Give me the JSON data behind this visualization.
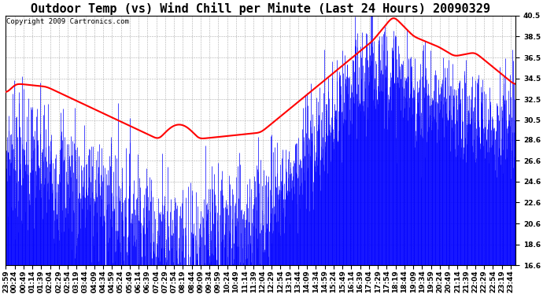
{
  "title": "Outdoor Temp (vs) Wind Chill per Minute (Last 24 Hours) 20090329",
  "copyright": "Copyright 2009 Cartronics.com",
  "ymin": 16.6,
  "ymax": 40.5,
  "yticks": [
    16.6,
    18.6,
    20.6,
    22.6,
    24.6,
    26.6,
    28.6,
    30.5,
    32.5,
    34.5,
    36.5,
    38.5,
    40.5
  ],
  "bg_color": "#ffffff",
  "plot_bg_color": "#ffffff",
  "grid_color": "#999999",
  "bar_color": "#0000ff",
  "line_color": "#ff0000",
  "title_fontsize": 11,
  "copyright_fontsize": 6.5,
  "tick_fontsize": 6.5
}
